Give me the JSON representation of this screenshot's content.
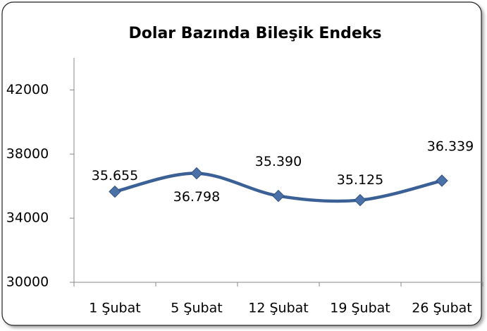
{
  "chart_data": {
    "type": "line",
    "title": "Dolar Bazında Bileşik Endeks",
    "categories": [
      "1 Şubat",
      "5 Şubat",
      "12 Şubat",
      "19 Şubat",
      "26 Şubat"
    ],
    "series": [
      {
        "name": "Dolar Bazında Bileşik Endeks",
        "color": "#3b6096",
        "values": [
          35655,
          36798,
          35390,
          35125,
          36339
        ],
        "value_labels": [
          "35.655",
          "36.798",
          "35.390",
          "35.125",
          "36.339"
        ]
      }
    ],
    "ylim": [
      30000,
      44000
    ],
    "yticks": [
      30000,
      34000,
      38000,
      42000
    ],
    "grid": false,
    "smooth": true
  }
}
